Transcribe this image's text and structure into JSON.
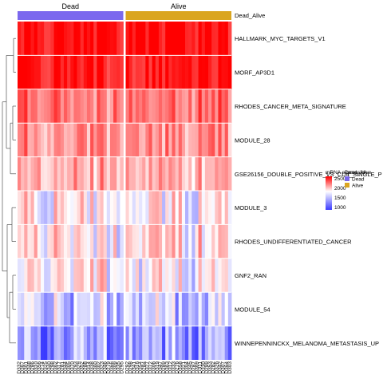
{
  "chart_data": {
    "type": "heatmap",
    "title": "",
    "rows": [
      "HALLMARK_MYC_TARGETS_V1",
      "MORF_AP3D1",
      "RHODES_CANCER_META_SIGNATURE",
      "MODULE_28",
      "GSE26156_DOUBLE_POSITIVE_VS_CD4_SINGLE_P",
      "MODULE_3",
      "RHODES_UNDIFFERENTIATED_CANCER",
      "GNF2_RAN",
      "MODULE_54",
      "WINNEPENNINCKX_MELANOMA_METASTASIS_UP"
    ],
    "row_baseline": [
      2580,
      2520,
      2200,
      2080,
      1980,
      1720,
      1800,
      1720,
      1520,
      1350
    ],
    "column_groups": [
      {
        "name": "Dead",
        "color": "#7b68ee",
        "count": 32
      },
      {
        "name": "Alive",
        "color": "#daa520",
        "count": 32
      }
    ],
    "column_labels": [
      "D332",
      "D367",
      "D301",
      "D348",
      "D286",
      "D310",
      "D356",
      "D274",
      "D325",
      "D340",
      "D298",
      "D362",
      "D317",
      "D281",
      "D344",
      "D305",
      "D370",
      "D293",
      "D329",
      "D352",
      "D288",
      "D314",
      "D338",
      "D360",
      "D302",
      "D323",
      "D346",
      "D279",
      "D366",
      "D309",
      "D335",
      "D295",
      "D292",
      "D298",
      "D341",
      "D316",
      "D354",
      "D284",
      "D327",
      "D372",
      "D306",
      "D319",
      "D347",
      "D289",
      "D363",
      "D312",
      "D333",
      "D276",
      "D358",
      "D321",
      "D304",
      "D345",
      "D287",
      "D369",
      "D311",
      "D330",
      "D299",
      "D353",
      "D282",
      "D326",
      "D342",
      "D307",
      "D364",
      "D303"
    ],
    "scale": {
      "min": 1000,
      "max": 2600,
      "low_color": "#3b3bff",
      "mid_color": "#ffffff",
      "high_color": "#ff0000"
    },
    "legend": {
      "title": "mRNA expression",
      "ticks": [
        2500,
        2000,
        1500,
        1000
      ],
      "annotation_title": "Dead_Alive",
      "annotation_items": [
        {
          "label": "Dead",
          "color": "#7b68ee"
        },
        {
          "label": "Alive",
          "color": "#daa520"
        }
      ]
    },
    "annotation_bar_label": "Dead_Alive",
    "grid": false,
    "legend_position": "right"
  }
}
